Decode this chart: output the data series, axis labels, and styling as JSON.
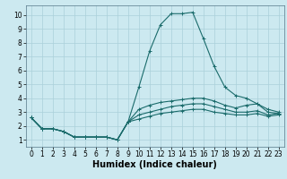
{
  "xlabel": "Humidex (Indice chaleur)",
  "ylabel": "",
  "xlim": [
    -0.5,
    23.5
  ],
  "ylim": [
    0.5,
    10.7
  ],
  "xticks": [
    0,
    1,
    2,
    3,
    4,
    5,
    6,
    7,
    8,
    9,
    10,
    11,
    12,
    13,
    14,
    15,
    16,
    17,
    18,
    19,
    20,
    21,
    22,
    23
  ],
  "yticks": [
    1,
    2,
    3,
    4,
    5,
    6,
    7,
    8,
    9,
    10
  ],
  "bg_color": "#cce9f0",
  "grid_color": "#aad0da",
  "line_color": "#1a6b6b",
  "lines": [
    {
      "x": [
        0,
        1,
        2,
        3,
        4,
        5,
        6,
        7,
        8,
        9,
        10,
        11,
        12,
        13,
        14,
        15,
        16,
        17,
        18,
        19,
        20,
        21,
        22,
        23
      ],
      "y": [
        2.6,
        1.8,
        1.8,
        1.6,
        1.2,
        1.2,
        1.2,
        1.2,
        1.0,
        2.3,
        4.8,
        7.4,
        9.3,
        10.1,
        10.1,
        10.2,
        8.3,
        6.3,
        4.8,
        4.2,
        4.0,
        3.6,
        3.2,
        3.0
      ]
    },
    {
      "x": [
        0,
        1,
        2,
        3,
        4,
        5,
        6,
        7,
        8,
        9,
        10,
        11,
        12,
        13,
        14,
        15,
        16,
        17,
        18,
        19,
        20,
        21,
        22,
        23
      ],
      "y": [
        2.6,
        1.8,
        1.8,
        1.6,
        1.2,
        1.2,
        1.2,
        1.2,
        1.0,
        2.3,
        3.2,
        3.5,
        3.7,
        3.8,
        3.9,
        4.0,
        4.0,
        3.8,
        3.5,
        3.3,
        3.5,
        3.6,
        3.0,
        2.9
      ]
    },
    {
      "x": [
        0,
        1,
        2,
        3,
        4,
        5,
        6,
        7,
        8,
        9,
        10,
        11,
        12,
        13,
        14,
        15,
        16,
        17,
        18,
        19,
        20,
        21,
        22,
        23
      ],
      "y": [
        2.6,
        1.8,
        1.8,
        1.6,
        1.2,
        1.2,
        1.2,
        1.2,
        1.0,
        2.3,
        2.8,
        3.0,
        3.2,
        3.4,
        3.5,
        3.6,
        3.6,
        3.4,
        3.2,
        3.0,
        3.0,
        3.1,
        2.8,
        2.9
      ]
    },
    {
      "x": [
        0,
        1,
        2,
        3,
        4,
        5,
        6,
        7,
        8,
        9,
        10,
        11,
        12,
        13,
        14,
        15,
        16,
        17,
        18,
        19,
        20,
        21,
        22,
        23
      ],
      "y": [
        2.6,
        1.8,
        1.8,
        1.6,
        1.2,
        1.2,
        1.2,
        1.2,
        1.0,
        2.3,
        2.5,
        2.7,
        2.9,
        3.0,
        3.1,
        3.2,
        3.2,
        3.0,
        2.9,
        2.8,
        2.8,
        2.9,
        2.7,
        2.8
      ]
    }
  ],
  "font_size_label": 7,
  "font_size_tick": 5.5,
  "marker": "+",
  "linewidth": 0.8,
  "markersize": 2.5
}
